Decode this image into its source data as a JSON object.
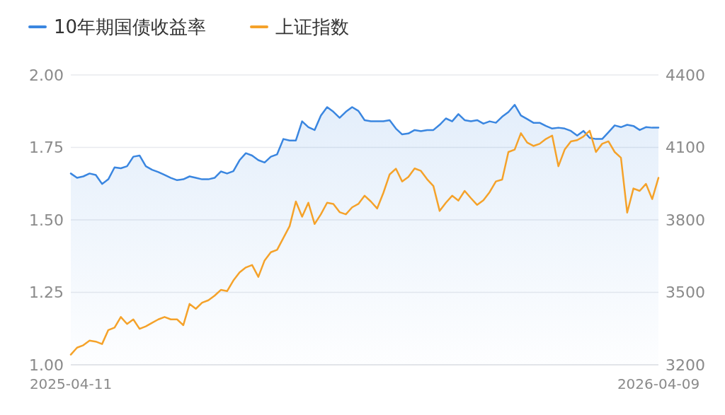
{
  "chart_data": {
    "type": "line",
    "categories": [
      "2025-04-11",
      null,
      null,
      null,
      null,
      null,
      null,
      null,
      null,
      null,
      null,
      null,
      null,
      null,
      null,
      null,
      null,
      null,
      null,
      null,
      null,
      null,
      null,
      null,
      null,
      null,
      null,
      null,
      null,
      null,
      null,
      null,
      null,
      null,
      null,
      null,
      null,
      null,
      null,
      null,
      null,
      null,
      null,
      null,
      null,
      null,
      null,
      null,
      null,
      null,
      null,
      null,
      null,
      null,
      null,
      null,
      null,
      null,
      null,
      null,
      null,
      null,
      null,
      null,
      null,
      null,
      null,
      null,
      null,
      null,
      null,
      null,
      null,
      null,
      null,
      null,
      null,
      null,
      null,
      null,
      null,
      null,
      null,
      null,
      null,
      null,
      null,
      null,
      null,
      null,
      null,
      null,
      null,
      null,
      "2026-04-09"
    ],
    "series": [
      {
        "name": "10年期国债收益率",
        "type": "area",
        "color": "#3a86e0",
        "values": [
          1.66,
          1.645,
          1.65,
          1.66,
          1.655,
          1.624,
          1.64,
          1.681,
          1.678,
          1.685,
          1.718,
          1.722,
          1.685,
          1.673,
          1.665,
          1.655,
          1.645,
          1.637,
          1.64,
          1.65,
          1.645,
          1.64,
          1.64,
          1.645,
          1.667,
          1.66,
          1.668,
          1.706,
          1.73,
          1.722,
          1.706,
          1.698,
          1.718,
          1.726,
          1.779,
          1.774,
          1.774,
          1.84,
          1.82,
          1.81,
          1.86,
          1.889,
          1.873,
          1.852,
          1.873,
          1.889,
          1.876,
          1.844,
          1.84,
          1.84,
          1.84,
          1.844,
          1.815,
          1.795,
          1.798,
          1.81,
          1.806,
          1.81,
          1.81,
          1.828,
          1.85,
          1.84,
          1.865,
          1.844,
          1.84,
          1.844,
          1.832,
          1.84,
          1.835,
          1.856,
          1.872,
          1.897,
          1.86,
          1.848,
          1.835,
          1.835,
          1.824,
          1.815,
          1.818,
          1.815,
          1.807,
          1.791,
          1.807,
          1.783,
          1.779,
          1.779,
          1.802,
          1.826,
          1.82,
          1.828,
          1.824,
          1.81,
          1.82,
          1.818,
          1.818
        ]
      },
      {
        "name": "上证指数",
        "type": "line",
        "axis": "y2",
        "color": "#f5a22a",
        "values": [
          3242,
          3271,
          3281,
          3300,
          3296,
          3286,
          3344,
          3354,
          3398,
          3369,
          3388,
          3349,
          3359,
          3374,
          3388,
          3398,
          3388,
          3388,
          3364,
          3452,
          3432,
          3457,
          3467,
          3486,
          3510,
          3505,
          3549,
          3583,
          3603,
          3613,
          3564,
          3632,
          3666,
          3676,
          3725,
          3774,
          3876,
          3813,
          3871,
          3783,
          3823,
          3871,
          3866,
          3832,
          3823,
          3852,
          3866,
          3900,
          3876,
          3847,
          3912,
          3988,
          4012,
          3959,
          3978,
          4013,
          4003,
          3968,
          3940,
          3837,
          3871,
          3900,
          3880,
          3920,
          3890,
          3862,
          3881,
          3915,
          3959,
          3967,
          4081,
          4091,
          4159,
          4120,
          4106,
          4115,
          4135,
          4149,
          4022,
          4091,
          4125,
          4130,
          4145,
          4169,
          4081,
          4115,
          4125,
          4081,
          4057,
          3830,
          3930,
          3920,
          3949,
          3886,
          3974
        ]
      }
    ],
    "ylim": [
      1.0,
      2.0
    ],
    "yticks": [
      {
        "value": 1.0,
        "label": "1.00"
      },
      {
        "value": 1.25,
        "label": "1.25"
      },
      {
        "value": 1.5,
        "label": "1.50"
      },
      {
        "value": 1.75,
        "label": "1.75"
      },
      {
        "value": 2.0,
        "label": "2.00"
      }
    ],
    "y2lim": [
      3200,
      4400
    ],
    "y2ticks": [
      3200,
      3500,
      3800,
      4100,
      4400
    ],
    "grid": "y",
    "legend": "top left"
  }
}
